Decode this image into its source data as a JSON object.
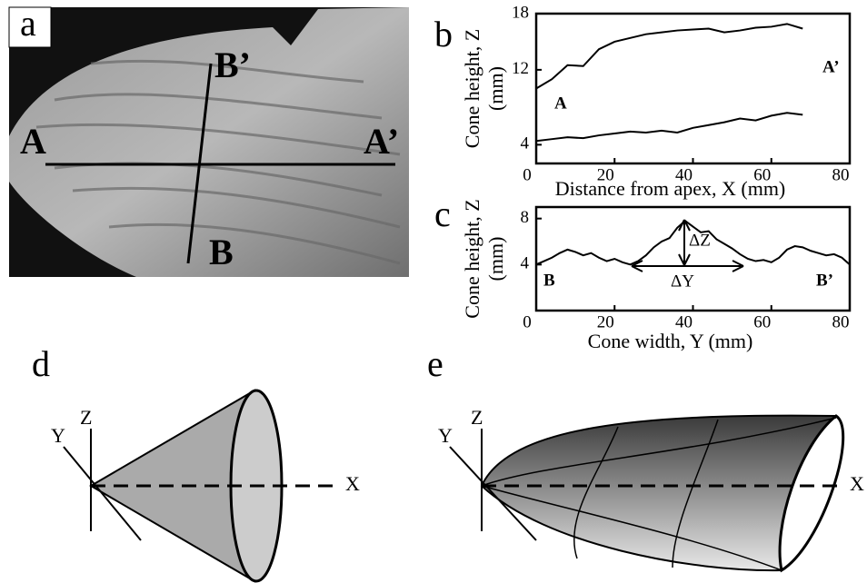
{
  "panel_a": {
    "label": "a",
    "points": [
      "A",
      "A’",
      "B",
      "B’"
    ]
  },
  "chart_data": [
    {
      "type": "line",
      "panel_label": "b",
      "xlabel": "Distance from apex, X (mm)",
      "ylabel": [
        "Cone height, Z",
        "(mm)"
      ],
      "x": [
        0,
        4,
        8,
        12,
        16,
        20,
        24,
        28,
        32,
        36,
        40,
        44,
        48,
        52,
        56,
        60,
        64,
        68
      ],
      "series": [
        {
          "color": "#000000",
          "values": [
            10,
            11,
            12.5,
            12.4,
            14.2,
            15.0,
            15.4,
            15.8,
            16.0,
            16.2,
            16.3,
            16.4,
            16.0,
            16.2,
            16.5,
            16.6,
            16.9,
            16.4
          ]
        },
        {
          "color": "#000000",
          "values": [
            4.4,
            4.6,
            4.8,
            4.7,
            5.0,
            5.2,
            5.4,
            5.3,
            5.5,
            5.3,
            5.8,
            6.1,
            6.4,
            6.8,
            6.6,
            7.1,
            7.4,
            7.2
          ]
        }
      ],
      "annotations": [
        "A",
        "A’"
      ],
      "xlim": [
        0,
        80
      ],
      "xticks": [
        0,
        20,
        40,
        60,
        80
      ],
      "ylim": [
        2,
        18
      ],
      "yticks": [
        4,
        12,
        18
      ]
    },
    {
      "type": "line",
      "panel_label": "c",
      "xlabel": "Cone width, Y (mm)",
      "ylabel": [
        "Cone height, Z",
        "(mm)"
      ],
      "x": [
        0,
        2,
        4,
        6,
        8,
        10,
        12,
        14,
        16,
        18,
        20,
        22,
        24,
        26,
        28,
        30,
        32,
        34,
        36,
        38,
        40,
        42,
        44,
        46,
        48,
        50,
        52,
        54,
        56,
        58,
        60,
        62,
        64,
        66,
        68,
        70,
        72,
        74,
        76,
        78,
        80
      ],
      "series": [
        {
          "color": "#000000",
          "values": [
            4.0,
            4.3,
            4.6,
            5.0,
            5.3,
            5.1,
            4.8,
            5.0,
            4.6,
            4.3,
            4.5,
            4.2,
            4.0,
            4.3,
            4.8,
            5.5,
            6.0,
            6.3,
            7.2,
            7.8,
            7.3,
            6.8,
            6.9,
            6.2,
            5.8,
            5.4,
            4.9,
            4.5,
            4.3,
            4.4,
            4.2,
            4.6,
            5.3,
            5.6,
            5.5,
            5.2,
            5.0,
            4.8,
            4.9,
            4.6,
            4.0
          ]
        }
      ],
      "annotations": [
        "B",
        "B’",
        "ΔZ",
        "ΔY"
      ],
      "xlim": [
        0,
        80
      ],
      "xticks": [
        0,
        20,
        40,
        60,
        80
      ],
      "ylim": [
        0,
        9
      ],
      "yticks": [
        4,
        8
      ]
    }
  ],
  "panel_d": {
    "label": "d",
    "axes": [
      "X",
      "Y",
      "Z"
    ]
  },
  "panel_e": {
    "label": "e",
    "axes": [
      "X",
      "Y",
      "Z"
    ]
  }
}
